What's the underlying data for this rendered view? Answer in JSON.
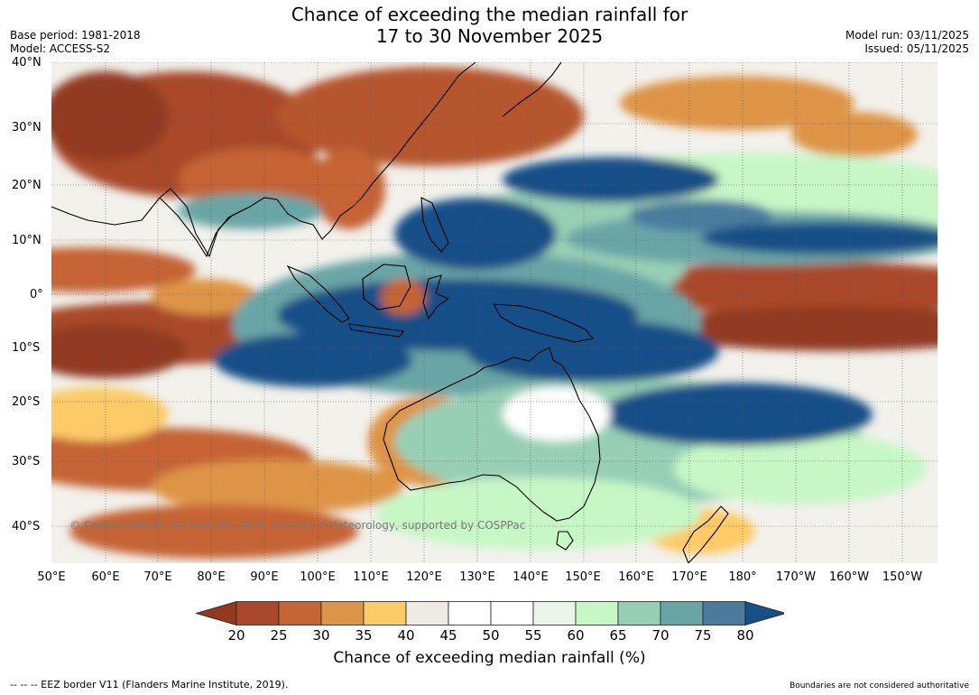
{
  "header": {
    "title_line1": "Chance of exceeding the median rainfall for",
    "title_line2": "17 to 30 November 2025",
    "base_period": "Base period: 1981-2018",
    "model": "Model: ACCESS-S2",
    "model_run": "Model run: 03/11/2025",
    "issued": "Issued: 05/11/2025"
  },
  "map": {
    "copyright": "© Commonwealth of Australia 2025, Bureau of Meteorology, supported by COSPPac",
    "lat_labels": [
      "40°N",
      "30°N",
      "20°N",
      "10°N",
      "0°",
      "10°S",
      "20°S",
      "30°S",
      "40°S"
    ],
    "lon_labels": [
      "50°E",
      "60°E",
      "70°E",
      "80°E",
      "90°E",
      "100°E",
      "110°E",
      "120°E",
      "130°E",
      "140°E",
      "150°E",
      "160°E",
      "170°E",
      "180°",
      "170°W",
      "160°W",
      "150°W"
    ]
  },
  "legend": {
    "title": "Chance of exceeding median rainfall (%)",
    "ticks": [
      "20",
      "25",
      "30",
      "35",
      "40",
      "45",
      "50",
      "55",
      "60",
      "65",
      "70",
      "75",
      "80"
    ],
    "colors": [
      "#923a20",
      "#a9482a",
      "#c56434",
      "#de9447",
      "#fdca68",
      "#eeebe4",
      "#ffffff",
      "#ffffff",
      "#e9f5e6",
      "#c8f7c6",
      "#97cfb5",
      "#6aa5a6",
      "#4a7b9d",
      "#174f87"
    ]
  },
  "footer": {
    "eez_note": "--  --  -- EEZ border V11 (Flanders Marine Institute, 2019).",
    "disclaimer": "Boundaries are not considered authoritative"
  }
}
